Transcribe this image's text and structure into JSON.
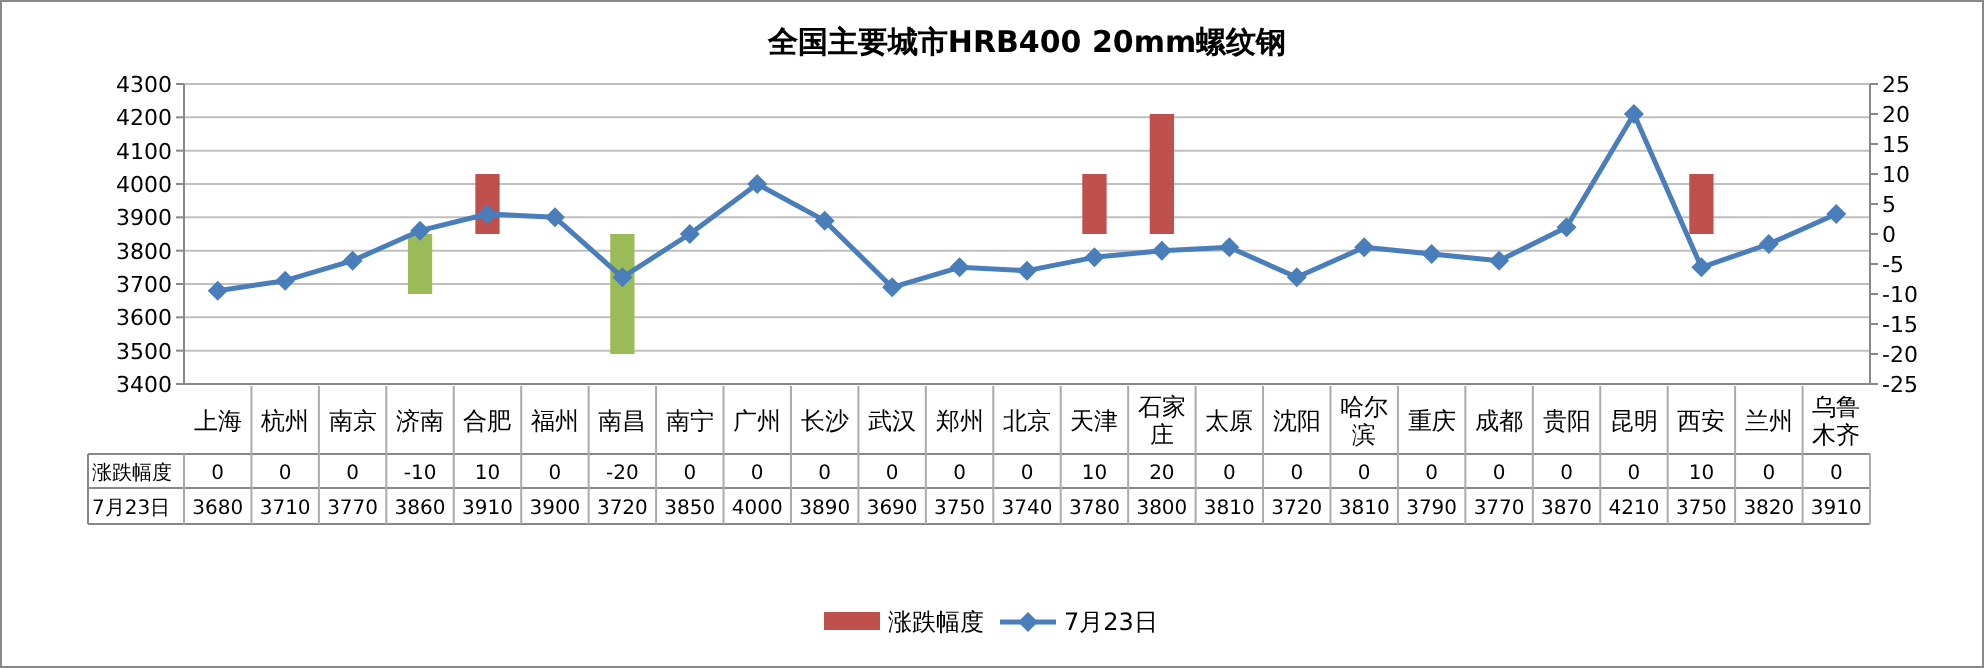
{
  "chart_data": {
    "type": "line",
    "title": "全国主要城市HRB400 20mm螺纹钢",
    "categories": [
      "上海",
      "杭州",
      "南京",
      "济南",
      "合肥",
      "福州",
      "南昌",
      "南宁",
      "广州",
      "长沙",
      "武汉",
      "郑州",
      "北京",
      "天津",
      "石家庄",
      "太原",
      "沈阳",
      "哈尔滨",
      "重庆",
      "成都",
      "贵阳",
      "昆明",
      "西安",
      "兰州",
      "乌鲁木齐"
    ],
    "series": [
      {
        "name": "涨跌幅度",
        "type": "bar",
        "axis": "y2",
        "color": "#c0504d",
        "colors": [
          "#c0504d",
          "#c0504d",
          "#c0504d",
          "#9bbb59",
          "#c0504d",
          "#c0504d",
          "#9bbb59",
          "#c0504d",
          "#c0504d",
          "#c0504d",
          "#c0504d",
          "#c0504d",
          "#c0504d",
          "#c0504d",
          "#c0504d",
          "#c0504d",
          "#c0504d",
          "#c0504d",
          "#c0504d",
          "#c0504d",
          "#c0504d",
          "#c0504d",
          "#c0504d",
          "#c0504d",
          "#c0504d"
        ],
        "values": [
          0,
          0,
          0,
          -10,
          10,
          0,
          -20,
          0,
          0,
          0,
          0,
          0,
          0,
          10,
          20,
          0,
          0,
          0,
          0,
          0,
          0,
          0,
          10,
          0,
          0
        ]
      },
      {
        "name": "7月23日",
        "color": "#4a7ebb",
        "marker": "diamond",
        "values": [
          3680,
          3710,
          3770,
          3860,
          3910,
          3900,
          3720,
          3850,
          4000,
          3890,
          3690,
          3750,
          3740,
          3780,
          3800,
          3810,
          3720,
          3810,
          3790,
          3770,
          3870,
          4210,
          3750,
          3820,
          3910
        ]
      }
    ],
    "ylim": [
      3400,
      4300
    ],
    "yticks": [
      3400,
      3500,
      3600,
      3700,
      3800,
      3900,
      4000,
      4100,
      4200,
      4300
    ],
    "y2lim": [
      -25,
      25
    ],
    "y2ticks": [
      -25,
      -20,
      -15,
      -10,
      -5,
      0,
      5,
      10,
      15,
      20,
      25
    ],
    "grid": "y",
    "legend": "bottom",
    "data_labels": true
  }
}
